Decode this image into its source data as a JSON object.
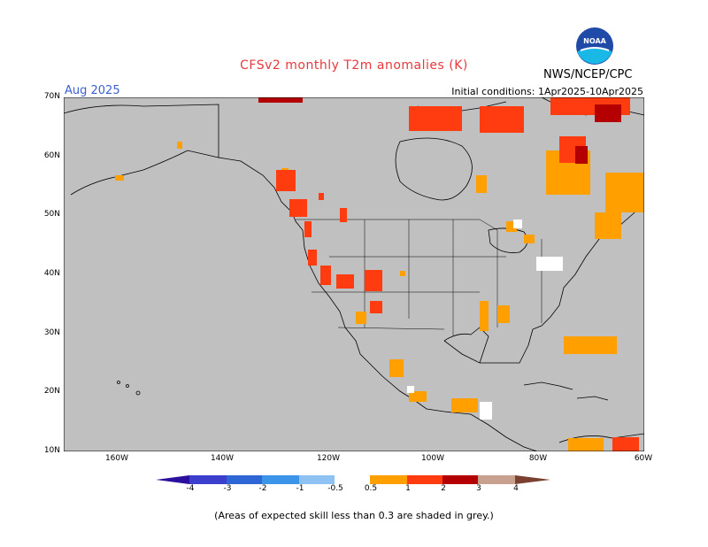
{
  "title": "CFSv2 monthly T2m anomalies (K)",
  "period": "Aug 2025",
  "initial_conditions": "Initial conditions: 1Apr2025-10Apr2025",
  "agency": "NWS/NCEP/CPC",
  "logo_text": "NOAA",
  "footnote": "(Areas of expected skill less than 0.3 are shaded in grey.)",
  "colors": {
    "title": "#e8383d",
    "period": "#3b5fcf",
    "grey_low_skill": "#c0c0c0",
    "land_border": "#000000"
  },
  "axes": {
    "lat_labels": [
      "70N",
      "60N",
      "50N",
      "40N",
      "30N",
      "20N",
      "10N"
    ],
    "lon_labels": [
      "160W",
      "140W",
      "120W",
      "100W",
      "80W",
      "60W"
    ]
  },
  "colorbar": {
    "labels": [
      "-4",
      "-3",
      "-2",
      "-1",
      "-0.5",
      "0.5",
      "1",
      "2",
      "3",
      "4"
    ],
    "colors": [
      "#2b0f9e",
      "#3b3fcc",
      "#2e66d6",
      "#3c94e8",
      "#8ec2f2",
      "#ffffff",
      "#ff9f00",
      "#ff3c10",
      "#b40000",
      "#c8a090",
      "#7a4030"
    ]
  }
}
